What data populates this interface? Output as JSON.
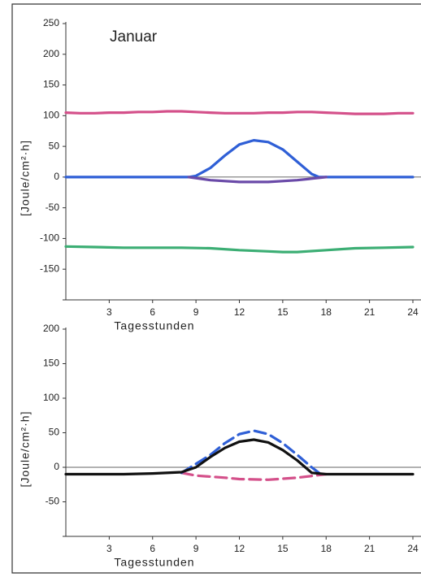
{
  "chart_data": [
    {
      "type": "line",
      "title": "Januar",
      "xlabel": "Tagesstunden",
      "ylabel": "[Joule/cm²·h]",
      "xlim": [
        0,
        24
      ],
      "xticks": [
        3,
        6,
        9,
        12,
        15,
        18,
        21,
        24
      ],
      "ylim": [
        -200,
        250
      ],
      "yticks": [
        -150,
        -100,
        -50,
        0,
        50,
        100,
        150,
        200,
        250
      ],
      "series": [
        {
          "color": "#d4508a",
          "dashed": false,
          "x": [
            0,
            1,
            2,
            3,
            4,
            5,
            6,
            7,
            8,
            9,
            10,
            11,
            12,
            13,
            14,
            15,
            16,
            17,
            18,
            19,
            20,
            21,
            22,
            23,
            24
          ],
          "values": [
            105,
            104,
            104,
            105,
            105,
            106,
            106,
            107,
            107,
            106,
            105,
            104,
            104,
            104,
            105,
            105,
            106,
            106,
            105,
            104,
            103,
            103,
            103,
            104,
            104
          ]
        },
        {
          "color": "#2f5fd6",
          "dashed": false,
          "x": [
            0,
            8.5,
            9,
            10,
            11,
            12,
            13,
            14,
            15,
            16,
            17,
            17.5,
            24
          ],
          "values": [
            0,
            0,
            2,
            15,
            35,
            53,
            60,
            57,
            45,
            25,
            5,
            0,
            0
          ]
        },
        {
          "color": "#6a4aa8",
          "dashed": false,
          "x": [
            8.5,
            10,
            12,
            13,
            14,
            16,
            18
          ],
          "values": [
            0,
            -5,
            -8,
            -8,
            -8,
            -5,
            0
          ]
        },
        {
          "color": "#3cae74",
          "dashed": false,
          "x": [
            0,
            2,
            4,
            6,
            8,
            10,
            12,
            14,
            15,
            16,
            18,
            20,
            22,
            24
          ],
          "values": [
            -113,
            -114,
            -115,
            -115,
            -115,
            -116,
            -119,
            -121,
            -122,
            -122,
            -119,
            -116,
            -115,
            -114
          ]
        }
      ]
    },
    {
      "type": "line",
      "xlabel": "Tagesstunden",
      "ylabel": "[Joule/cm²·h]",
      "xlim": [
        0,
        24
      ],
      "xticks": [
        3,
        6,
        9,
        12,
        15,
        18,
        21,
        24
      ],
      "ylim": [
        -100,
        200
      ],
      "yticks": [
        -50,
        0,
        50,
        100,
        150,
        200
      ],
      "series": [
        {
          "color": "#d4508a",
          "dashed": true,
          "x": [
            8,
            9,
            11,
            12,
            14,
            16,
            18
          ],
          "values": [
            -8,
            -12,
            -15,
            -17,
            -18,
            -15,
            -10
          ]
        },
        {
          "color": "#2f5fd6",
          "dashed": true,
          "x": [
            8,
            9,
            10,
            11,
            12,
            13,
            14,
            15,
            16,
            17,
            17.5
          ],
          "values": [
            -8,
            5,
            18,
            35,
            48,
            53,
            48,
            35,
            18,
            0,
            -8
          ]
        },
        {
          "color": "#111111",
          "dashed": false,
          "x": [
            0,
            2,
            4,
            6,
            8,
            9,
            10,
            11,
            12,
            13,
            14,
            15,
            16,
            17,
            18,
            20,
            22,
            24
          ],
          "values": [
            -10,
            -10,
            -10,
            -9,
            -7,
            0,
            15,
            28,
            37,
            40,
            36,
            25,
            10,
            -8,
            -10,
            -10,
            -10,
            -10
          ]
        }
      ]
    }
  ]
}
